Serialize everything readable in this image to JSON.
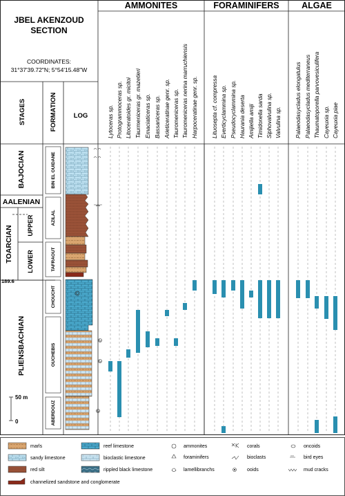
{
  "header": {
    "title_line1": "JBEL AKENZOUD",
    "title_line2": "SECTION",
    "coords_label": "COORDINATES:",
    "coords_value": "31°37'39.72\"N; 5°54'15.48\"W"
  },
  "columns": {
    "stages": "STAGES",
    "formation": "FORMATION",
    "log": "LOG"
  },
  "groups": {
    "ammonites": "AMMONITES",
    "foraminifers": "FORAMINIFERS",
    "algae": "ALGAE"
  },
  "taxa": {
    "ammonites": [
      "Lytoceras sp.",
      "Protogrammoceras sp.",
      "Litoceratoides gr. micitoi",
      "Taurmeniceras gr. mazetieri",
      "Emaciaticeras sp.",
      "Bassaniceras sp.",
      "Arieticeratinae genr. sp.",
      "Tauromeniceras sp.",
      "Tauromeniceras nerina marruchiensis",
      "Harpoceratinae genr. sp."
    ],
    "foraminifers": [
      "Lituosepta cf. compressa",
      "Everticyclammina sp.",
      "Pseudocyclammina sp.",
      "Haurania deserta",
      "Amijiella amiji",
      "Timidonella sarda",
      "Siphovalvulina sp.",
      "Valvulina sp."
    ],
    "algae": [
      "Palaeodasycladus elongatulus",
      "Palaeodasycladus mediterraneus",
      "Thaumatoporella parvovesiculifera",
      "Cayeuxia sp.",
      "Cayeuxia piae"
    ]
  },
  "stages": {
    "bajocian": "BAJOCIAN",
    "aalenian": "AALENIAN",
    "toarcian": "TOARCIAN",
    "upper": "UPPER",
    "lower": "LOWER",
    "pliensbachian": "PLIENSBACHIAN"
  },
  "formations": [
    "BIN EL OUIDANE",
    "AZILAL",
    "TAFRAOUT",
    "CHOUCHT",
    "OUCHEBIS",
    "ABERDOUZ"
  ],
  "scale": {
    "tick_50": "50 m",
    "tick_0": "0",
    "marker": "189.6"
  },
  "legend": {
    "marls": "marls",
    "sandy_limestone": "sandy limestone",
    "red_silt": "red silt",
    "channelized": "channelized sandstone and conglomerate",
    "reef_limestone": "reef limestone",
    "bioclastic_limestone": "bioclastic limestone",
    "rippled_black_limestone": "rippled black limestone",
    "ammonites": "ammonites",
    "foraminifers": "foraminifers",
    "lamellibranchs": "lamellibranchs",
    "corals": "corals",
    "bioclasts": "bioclasts",
    "ooids": "ooids",
    "oncoids": "oncoids",
    "bird_eyes": "bird eyes",
    "mud_cracks": "mud cracks"
  },
  "colors": {
    "range_bar": "#2a8fb0",
    "marls": "#d9a56f",
    "sandy_limestone": "#bfe2f2",
    "red_silt": "#9a5238",
    "reef_limestone": "#4aa9cc",
    "bioclastic_limestone": "#cfe8f5",
    "rippled_black_limestone": "#3b6f86",
    "channelized": "#8a2a1a"
  }
}
